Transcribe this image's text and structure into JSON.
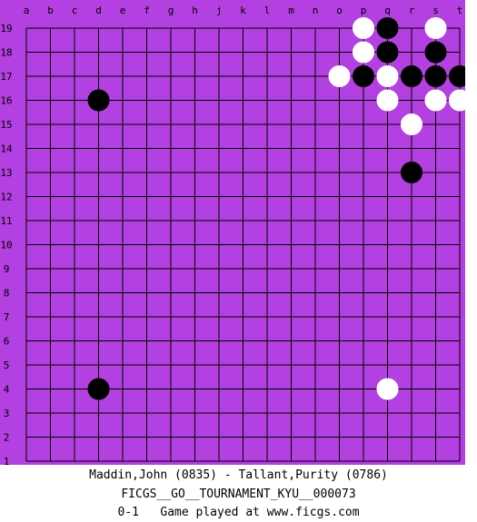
{
  "board": {
    "size": 19,
    "background_color": "#b340e0",
    "line_color": "#000000",
    "column_labels": [
      "a",
      "b",
      "c",
      "d",
      "e",
      "f",
      "g",
      "h",
      "j",
      "k",
      "l",
      "m",
      "n",
      "o",
      "p",
      "q",
      "r",
      "s",
      "t"
    ],
    "row_labels": [
      "19",
      "18",
      "17",
      "16",
      "15",
      "14",
      "13",
      "12",
      "11",
      "10",
      "9",
      "8",
      "7",
      "6",
      "5",
      "4",
      "3",
      "2",
      "1"
    ],
    "stones": [
      {
        "color": "white",
        "point": "p19"
      },
      {
        "color": "black",
        "point": "q19"
      },
      {
        "color": "white",
        "point": "s19"
      },
      {
        "color": "white",
        "point": "p18"
      },
      {
        "color": "black",
        "point": "q18"
      },
      {
        "color": "black",
        "point": "s18"
      },
      {
        "color": "white",
        "point": "o17"
      },
      {
        "color": "black",
        "point": "p17"
      },
      {
        "color": "white",
        "point": "q17"
      },
      {
        "color": "black",
        "point": "r17"
      },
      {
        "color": "black",
        "point": "s17"
      },
      {
        "color": "black",
        "point": "t17"
      },
      {
        "color": "black",
        "point": "d16"
      },
      {
        "color": "white",
        "point": "q16"
      },
      {
        "color": "white",
        "point": "s16"
      },
      {
        "color": "white",
        "point": "t16"
      },
      {
        "color": "white",
        "point": "r15"
      },
      {
        "color": "black",
        "point": "r13"
      },
      {
        "color": "black",
        "point": "d4"
      },
      {
        "color": "white",
        "point": "q4"
      }
    ]
  },
  "game_info": {
    "players": "Maddin,John (0835) - Tallant,Purity (0786)",
    "tournament": "FICGS__GO__TOURNAMENT_KYU__000073",
    "footer": "0-1   Game played at www.ficgs.com"
  }
}
